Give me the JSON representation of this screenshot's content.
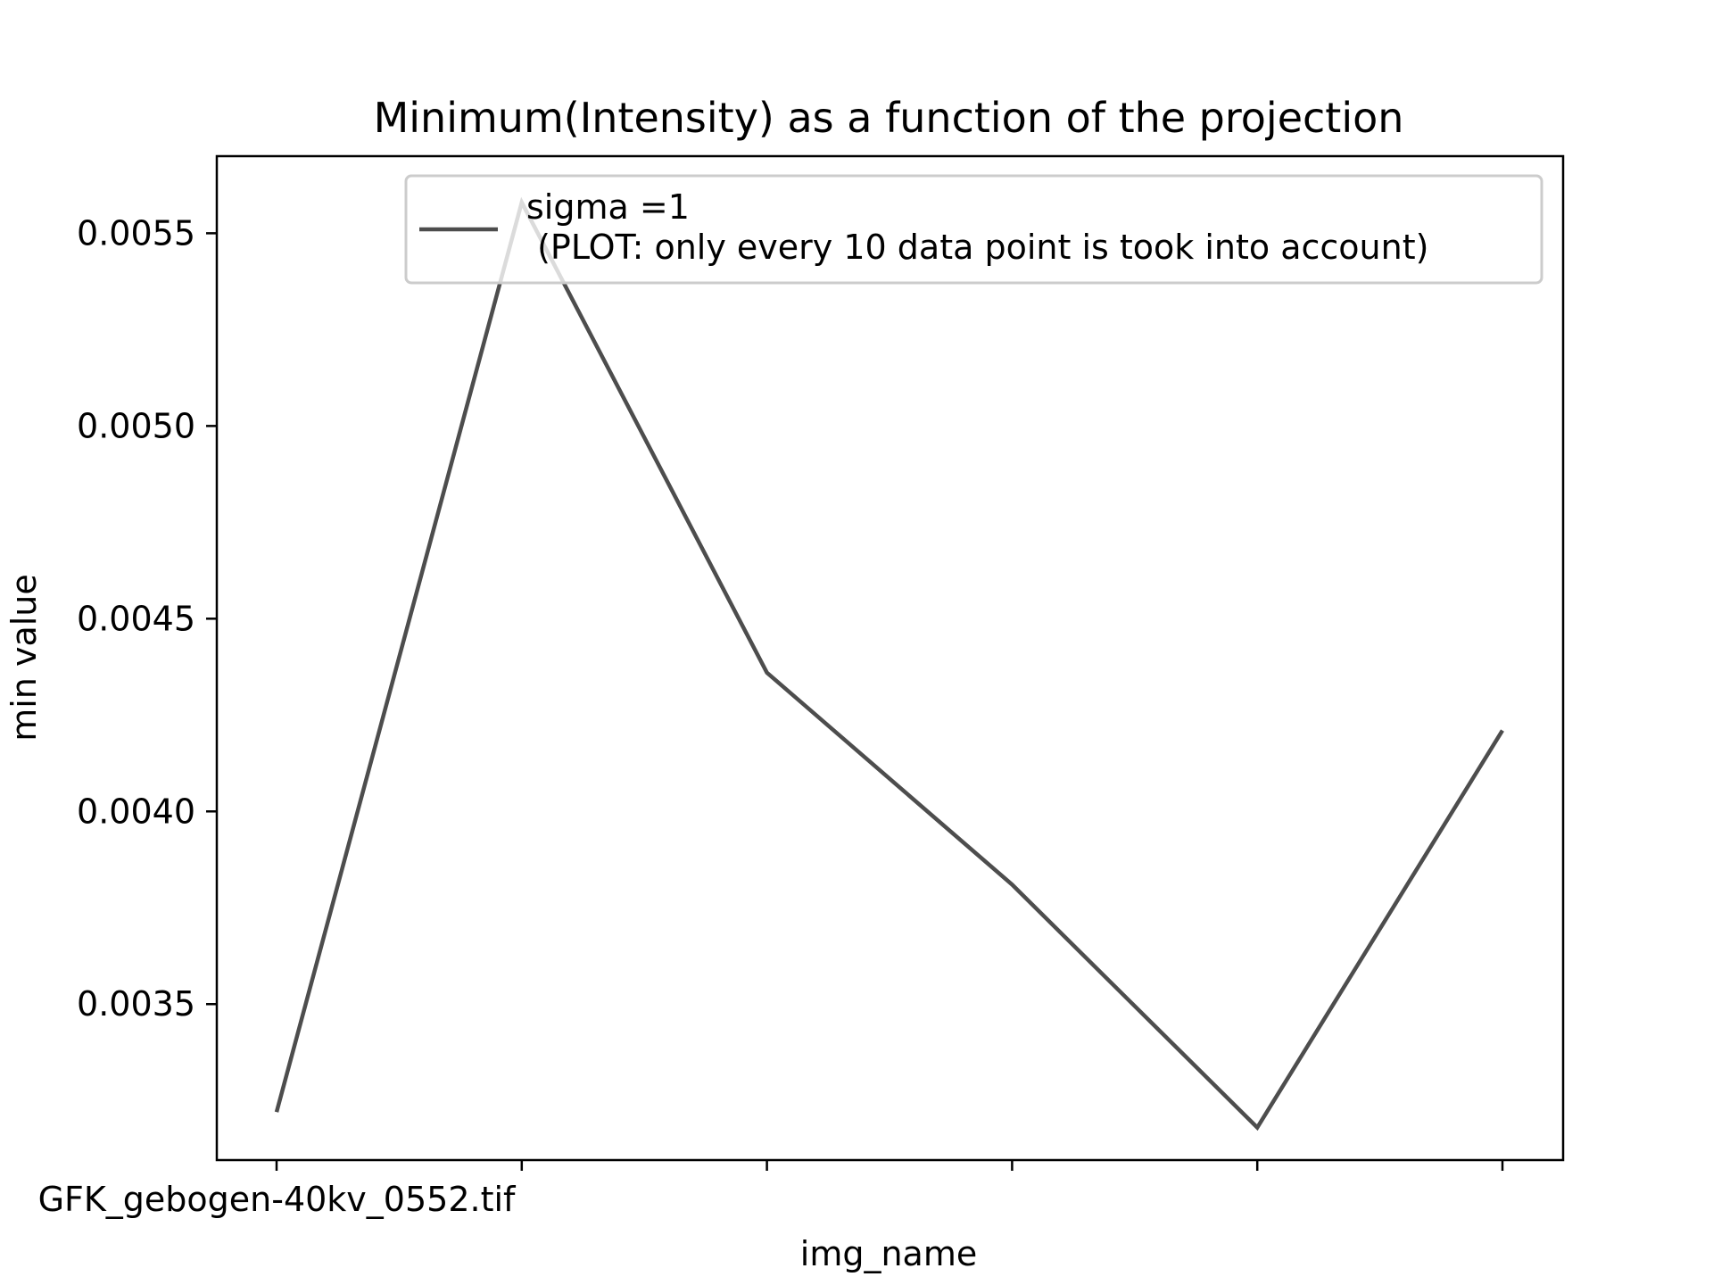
{
  "chart_data": {
    "type": "line",
    "title": "Minimum(Intensity) as a function of the projection",
    "xlabel": "img_name",
    "ylabel": "min value",
    "x": [
      "GFK_gebogen-40kv_0552.tif",
      "",
      "",
      "",
      "",
      ""
    ],
    "series": [
      {
        "name": "sigma =1\n (PLOT: only every 10 data point is took into account)",
        "values": [
          0.00322,
          0.00558,
          0.00436,
          0.00381,
          0.00318,
          0.00421
        ],
        "color": "#4d4d4d"
      }
    ],
    "x_tick_labels": [
      "GFK_gebogen-40kv_0552.tif",
      "",
      "",
      "",
      "",
      ""
    ],
    "y_ticks": [
      0.0035,
      0.004,
      0.0045,
      0.005,
      0.0055
    ],
    "y_tick_labels": [
      "0.0035",
      "0.0040",
      "0.0045",
      "0.0050",
      "0.0055"
    ],
    "ylim": [
      0.0030954,
      0.0057,
      0
    ],
    "grid": false,
    "legend_position": "upper right"
  }
}
